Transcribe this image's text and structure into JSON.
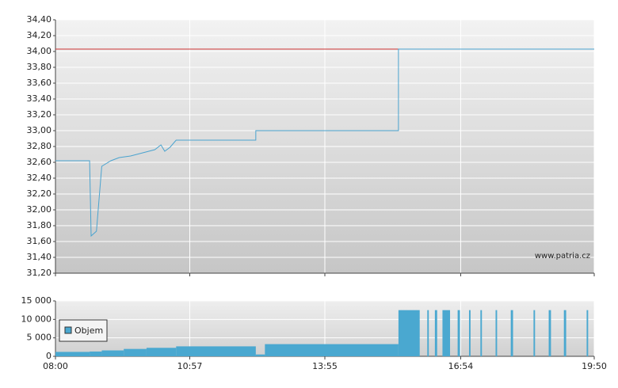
{
  "chart_data": [
    {
      "type": "line",
      "x": [
        "08:00",
        "08:45",
        "08:47",
        "08:54",
        "09:01",
        "09:13",
        "09:24",
        "09:39",
        "09:55",
        "10:11",
        "10:19",
        "10:24",
        "10:31",
        "10:39",
        "12:24",
        "12:24",
        "15:32",
        "15:32",
        "19:50"
      ],
      "values": [
        32.62,
        32.62,
        31.67,
        31.73,
        32.55,
        32.62,
        32.66,
        32.68,
        32.72,
        32.76,
        32.82,
        32.74,
        32.79,
        32.88,
        32.88,
        33.0,
        33.0,
        34.03,
        34.03
      ],
      "color": "#4aa3cf",
      "reference_line": {
        "value": 34.03,
        "color": "#cc3333"
      },
      "xlim": [
        "08:00",
        "19:50"
      ],
      "xticks": [
        "08:00",
        "10:57",
        "13:55",
        "16:54",
        "19:50"
      ],
      "ylim": [
        31.2,
        34.4
      ],
      "yticks": [
        {
          "value": 31.2,
          "label": "31,20"
        },
        {
          "value": 31.4,
          "label": "31,40"
        },
        {
          "value": 31.6,
          "label": "31,60"
        },
        {
          "value": 31.8,
          "label": "31,80"
        },
        {
          "value": 32.0,
          "label": "32,00"
        },
        {
          "value": 32.2,
          "label": "32,20"
        },
        {
          "value": 32.4,
          "label": "32,40"
        },
        {
          "value": 32.6,
          "label": "32,60"
        },
        {
          "value": 32.8,
          "label": "32,80"
        },
        {
          "value": 33.0,
          "label": "33,00"
        },
        {
          "value": 33.2,
          "label": "33,20"
        },
        {
          "value": 33.4,
          "label": "33,40"
        },
        {
          "value": 33.6,
          "label": "33,60"
        },
        {
          "value": 33.8,
          "label": "33,80"
        },
        {
          "value": 34.0,
          "label": "34,00"
        },
        {
          "value": 34.2,
          "label": "34,20"
        },
        {
          "value": 34.4,
          "label": "34,40"
        }
      ],
      "grid": true,
      "watermark": "www.patria.cz"
    },
    {
      "type": "step-area",
      "series": [
        {
          "name": "Objem",
          "color": "#4aa8d0",
          "x": [
            "08:00",
            "08:45",
            "09:01",
            "09:30",
            "10:00",
            "10:39",
            "12:24",
            "12:36",
            "15:32",
            "16:00",
            "16:10",
            "16:12",
            "16:20",
            "16:23",
            "16:30",
            "16:40",
            "16:50",
            "16:53",
            "17:05",
            "17:07",
            "17:20",
            "17:22",
            "17:40",
            "17:42",
            "18:00",
            "18:03",
            "18:30",
            "18:32",
            "18:50",
            "18:53",
            "19:10",
            "19:13",
            "19:40",
            "19:42"
          ],
          "values": [
            1200,
            1300,
            1600,
            2000,
            2300,
            2700,
            500,
            3300,
            12500,
            0,
            12500,
            0,
            12500,
            0,
            12500,
            0,
            12500,
            0,
            12500,
            0,
            12500,
            0,
            12500,
            0,
            12500,
            0,
            12500,
            0,
            12500,
            0,
            12500,
            0,
            12500,
            0
          ]
        }
      ],
      "xlim": [
        "08:00",
        "19:50"
      ],
      "xticks": [
        "08:00",
        "10:57",
        "13:55",
        "16:54",
        "19:50"
      ],
      "ylim": [
        0,
        15000
      ],
      "yticks": [
        0,
        {
          "value": 5000,
          "label": "5 000"
        },
        {
          "value": 10000,
          "label": "10 000"
        },
        {
          "value": 15000,
          "label": "15 000"
        }
      ],
      "grid": true,
      "legend": "left"
    }
  ]
}
